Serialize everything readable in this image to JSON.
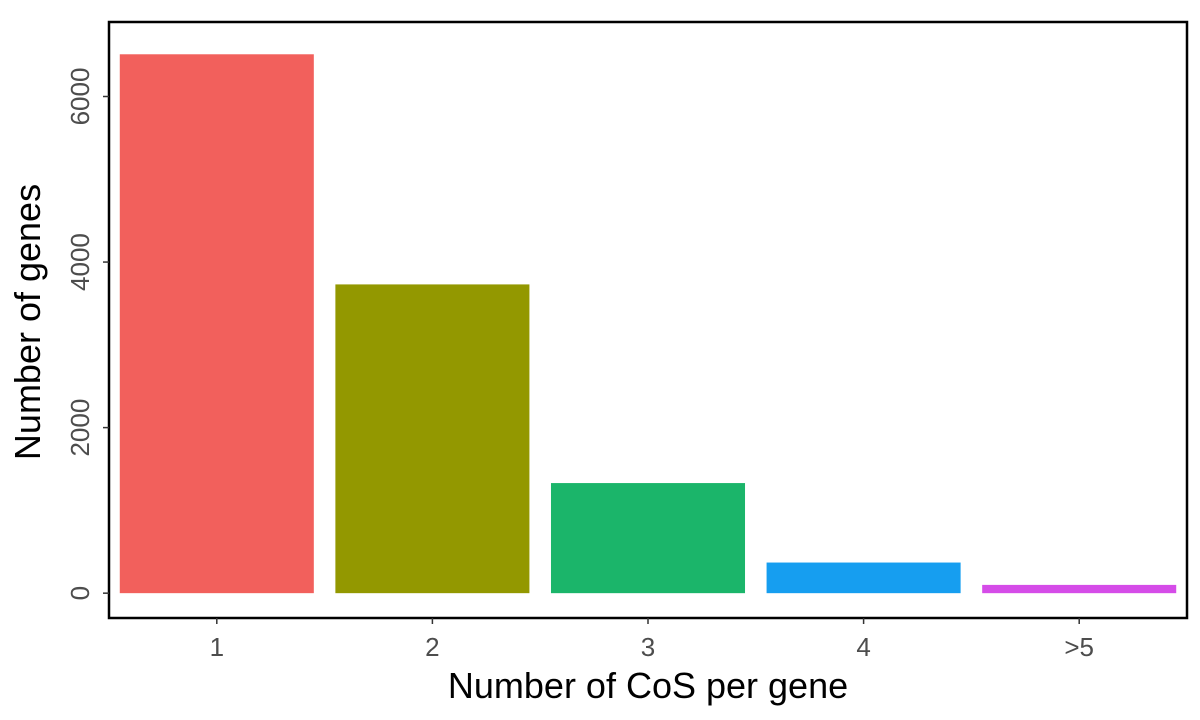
{
  "chart_data": {
    "type": "bar",
    "categories": [
      "1",
      "2",
      "3",
      "4",
      ">5"
    ],
    "values": [
      6510,
      3730,
      1330,
      370,
      100
    ],
    "colors": [
      "#F2605C",
      "#939800",
      "#1BB56A",
      "#169EF0",
      "#D54CE8"
    ],
    "title": "",
    "xlabel": "Number of CoS per gene",
    "ylabel": "Number of genes",
    "ylim": [
      -300,
      6900
    ],
    "yticks": [
      0,
      2000,
      4000,
      6000
    ],
    "ytick_labels": [
      "0",
      "2000",
      "4000",
      "6000"
    ],
    "grid": false,
    "legend": "none",
    "frame": true
  }
}
